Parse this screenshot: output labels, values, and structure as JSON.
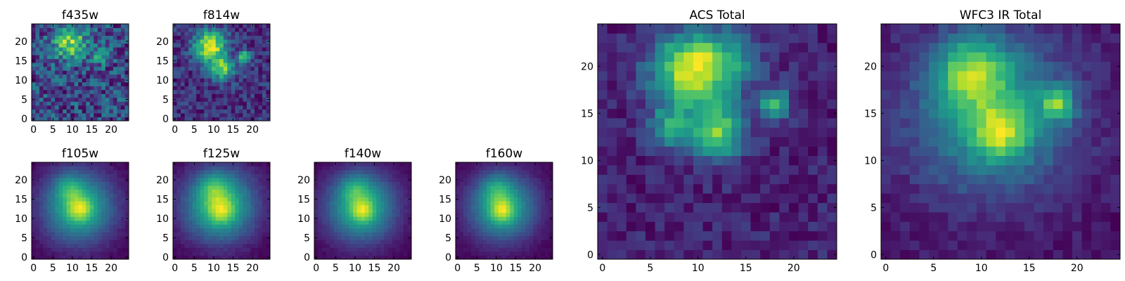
{
  "figure": {
    "background": "#ffffff",
    "colormap": "viridis",
    "panels_count": 8
  },
  "chart_data": [
    {
      "type": "heatmap",
      "title": "f435w",
      "grid_size": 25,
      "seed": 435,
      "noise": 0.55,
      "xticks": [
        "0",
        "5",
        "10",
        "15",
        "20"
      ],
      "yticks": [
        "0",
        "5",
        "10",
        "15",
        "20"
      ],
      "xlim": [
        -0.5,
        24.5
      ],
      "ylim": [
        -0.5,
        24.5
      ],
      "sources": [
        {
          "x": 9.5,
          "y": 19.5,
          "amp": 0.7,
          "sigma": 3.0
        },
        {
          "x": 17.5,
          "y": 16.5,
          "amp": 0.45,
          "sigma": 1.5
        }
      ]
    },
    {
      "type": "heatmap",
      "title": "f814w",
      "grid_size": 25,
      "seed": 814,
      "noise": 0.28,
      "xticks": [
        "0",
        "5",
        "10",
        "15",
        "20"
      ],
      "yticks": [
        "0",
        "5",
        "10",
        "15",
        "20"
      ],
      "xlim": [
        -0.5,
        24.5
      ],
      "ylim": [
        -0.5,
        24.5
      ],
      "sources": [
        {
          "x": 9,
          "y": 19,
          "amp": 0.8,
          "sigma": 2.8
        },
        {
          "x": 12,
          "y": 13,
          "amp": 0.6,
          "sigma": 2.2
        },
        {
          "x": 18,
          "y": 16,
          "amp": 0.55,
          "sigma": 1.2
        }
      ]
    },
    {
      "type": "heatmap",
      "title": "f105w",
      "grid_size": 25,
      "seed": 105,
      "noise": 0.06,
      "xticks": [
        "0",
        "5",
        "10",
        "15",
        "20"
      ],
      "yticks": [
        "0",
        "5",
        "10",
        "15",
        "20"
      ],
      "xlim": [
        -0.5,
        24.5
      ],
      "ylim": [
        -0.5,
        24.5
      ],
      "sources": [
        {
          "x": 11.5,
          "y": 13,
          "amp": 0.75,
          "sigma": 6.5
        },
        {
          "x": 12,
          "y": 12.5,
          "amp": 0.35,
          "sigma": 2.2
        },
        {
          "x": 9,
          "y": 18,
          "amp": 0.25,
          "sigma": 2.5
        }
      ]
    },
    {
      "type": "heatmap",
      "title": "f125w",
      "grid_size": 25,
      "seed": 125,
      "noise": 0.06,
      "xticks": [
        "0",
        "5",
        "10",
        "15",
        "20"
      ],
      "yticks": [
        "0",
        "5",
        "10",
        "15",
        "20"
      ],
      "xlim": [
        -0.5,
        24.5
      ],
      "ylim": [
        -0.5,
        24.5
      ],
      "sources": [
        {
          "x": 11.5,
          "y": 13.5,
          "amp": 0.8,
          "sigma": 6.5
        },
        {
          "x": 12,
          "y": 12,
          "amp": 0.3,
          "sigma": 2.2
        },
        {
          "x": 10,
          "y": 18,
          "amp": 0.25,
          "sigma": 2.5
        }
      ]
    },
    {
      "type": "heatmap",
      "title": "f140w",
      "grid_size": 25,
      "seed": 140,
      "noise": 0.05,
      "xticks": [
        "0",
        "5",
        "10",
        "15",
        "20"
      ],
      "yticks": [
        "0",
        "5",
        "10",
        "15",
        "20"
      ],
      "xlim": [
        -0.5,
        24.5
      ],
      "ylim": [
        -0.5,
        24.5
      ],
      "sources": [
        {
          "x": 11.5,
          "y": 13,
          "amp": 0.8,
          "sigma": 6.2
        },
        {
          "x": 12,
          "y": 12,
          "amp": 0.35,
          "sigma": 2.0
        },
        {
          "x": 10,
          "y": 18,
          "amp": 0.25,
          "sigma": 2.5
        }
      ]
    },
    {
      "type": "heatmap",
      "title": "f160w",
      "grid_size": 25,
      "seed": 160,
      "noise": 0.05,
      "xticks": [
        "0",
        "5",
        "10",
        "15",
        "20"
      ],
      "yticks": [
        "0",
        "5",
        "10",
        "15",
        "20"
      ],
      "xlim": [
        -0.5,
        24.5
      ],
      "ylim": [
        -0.5,
        24.5
      ],
      "sources": [
        {
          "x": 11.5,
          "y": 13,
          "amp": 0.8,
          "sigma": 6.0
        },
        {
          "x": 11.5,
          "y": 12,
          "amp": 0.4,
          "sigma": 2.0
        },
        {
          "x": 10,
          "y": 18,
          "amp": 0.25,
          "sigma": 2.5
        }
      ]
    },
    {
      "type": "heatmap",
      "title": "ACS Total",
      "grid_size": 25,
      "seed": 777,
      "noise": 0.2,
      "xticks": [
        "0",
        "5",
        "10",
        "15",
        "20"
      ],
      "yticks": [
        "0",
        "5",
        "10",
        "15",
        "20"
      ],
      "xlim": [
        -0.5,
        24.5
      ],
      "ylim": [
        -0.5,
        24.5
      ],
      "sources": [
        {
          "x": 9,
          "y": 19.5,
          "amp": 0.85,
          "sigma": 2.8
        },
        {
          "x": 13,
          "y": 20.5,
          "amp": 0.35,
          "sigma": 2.5
        },
        {
          "x": 12,
          "y": 13,
          "amp": 0.7,
          "sigma": 2.0
        },
        {
          "x": 7,
          "y": 13.5,
          "amp": 0.45,
          "sigma": 1.5
        },
        {
          "x": 18,
          "y": 16,
          "amp": 0.6,
          "sigma": 1.1
        }
      ]
    },
    {
      "type": "heatmap",
      "title": "WFC3 IR Total",
      "grid_size": 25,
      "seed": 313,
      "noise": 0.12,
      "xticks": [
        "0",
        "5",
        "10",
        "15",
        "20"
      ],
      "yticks": [
        "0",
        "5",
        "10",
        "15",
        "20"
      ],
      "xlim": [
        -0.5,
        24.5
      ],
      "ylim": [
        -0.5,
        24.5
      ],
      "sources": [
        {
          "x": 11,
          "y": 15,
          "amp": 0.5,
          "sigma": 6.0
        },
        {
          "x": 9,
          "y": 19.5,
          "amp": 0.5,
          "sigma": 2.5
        },
        {
          "x": 12,
          "y": 13,
          "amp": 0.45,
          "sigma": 2.0
        },
        {
          "x": 18,
          "y": 16,
          "amp": 0.55,
          "sigma": 1.2
        }
      ]
    }
  ]
}
